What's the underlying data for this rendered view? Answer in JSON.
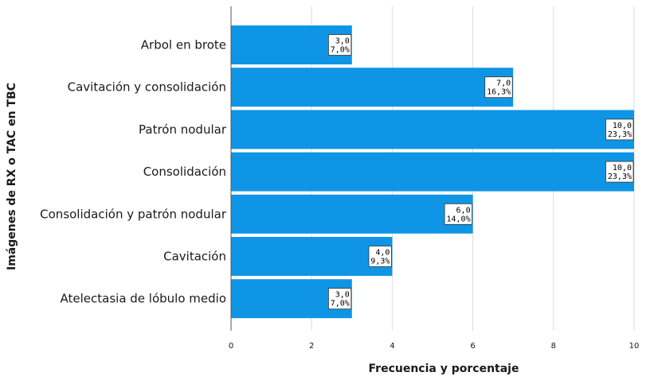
{
  "chart_data": {
    "type": "bar",
    "orientation": "horizontal",
    "categories": [
      "Arbol en brote",
      "Cavitación y consolidación",
      "Patrón nodular",
      "Consolidación",
      "Consolidación y patrón nodular",
      "Cavitación",
      "Atelectasia de lóbulo medio"
    ],
    "values": [
      3,
      7,
      10,
      10,
      6,
      4,
      3
    ],
    "data_labels": [
      [
        "3,0",
        "7,0%"
      ],
      [
        "7,0",
        "16,3%"
      ],
      [
        "10,0",
        "23,3%"
      ],
      [
        "10,0",
        "23,3%"
      ],
      [
        "6,0",
        "14,0%"
      ],
      [
        "4,0",
        "9,3%"
      ],
      [
        "3,0",
        "7,0%"
      ]
    ],
    "title": "",
    "xlabel": "Frecuencia y porcentaje",
    "ylabel": "Imágenes de RX o TAC en TBC",
    "xlim": [
      0,
      10
    ],
    "xticks": [
      "0",
      "2",
      "4",
      "6",
      "8",
      "10"
    ],
    "grid": true,
    "bar_color": "#0f95e6",
    "grid_color": "#dcdcdc"
  }
}
